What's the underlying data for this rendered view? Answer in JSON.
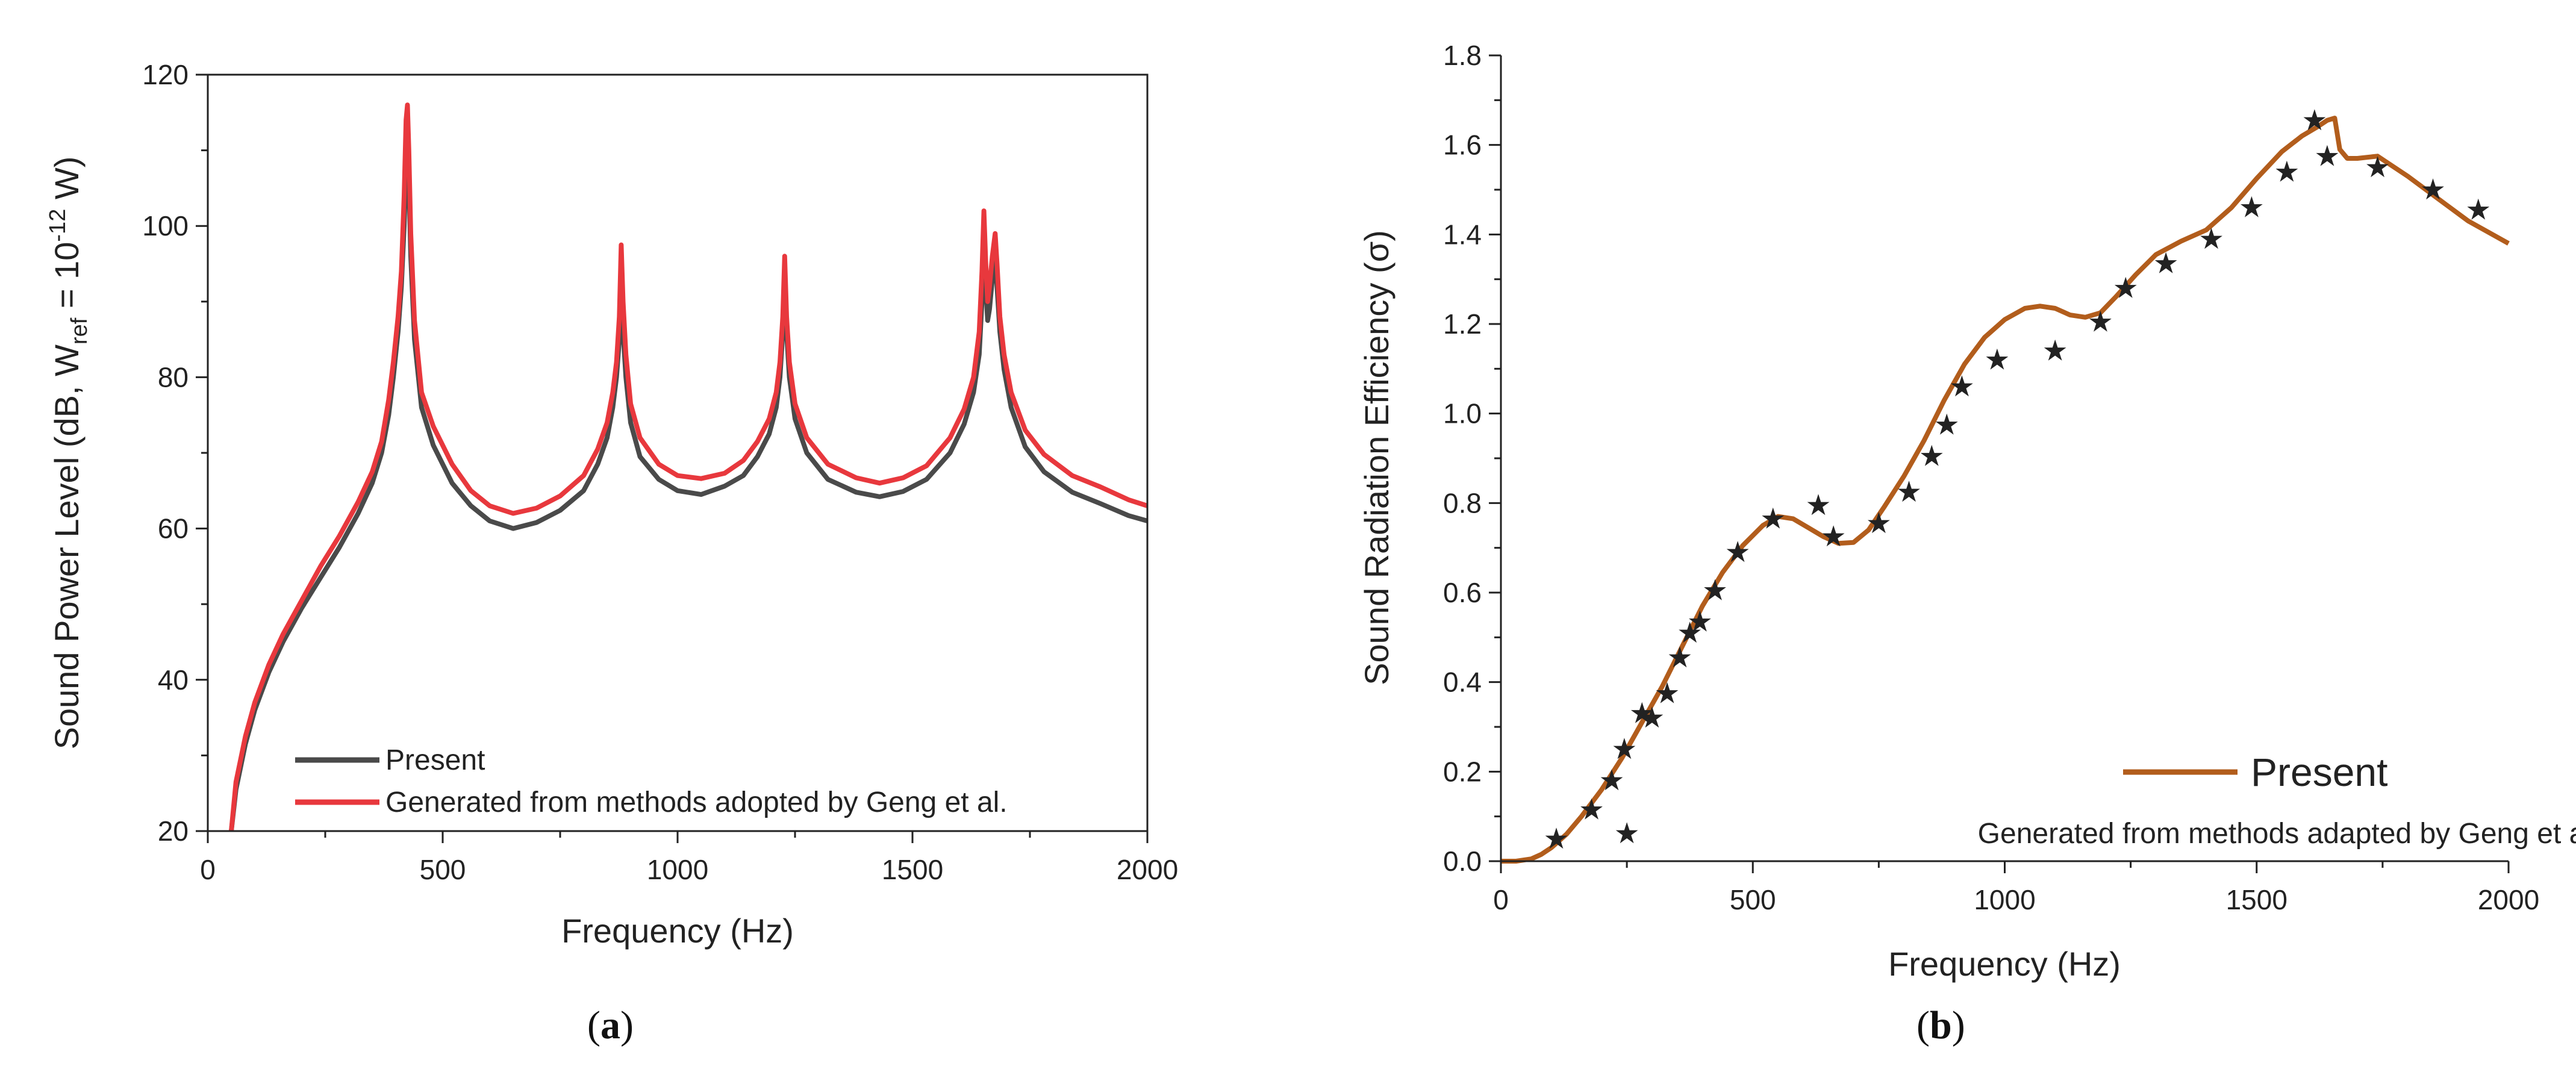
{
  "figure": {
    "caption_a": "a",
    "caption_b": "b"
  },
  "colors": {
    "present_a": "#4a4a4a",
    "geng_a": "#e8383d",
    "present_b": "#b25d1c",
    "geng_b": "#111111"
  },
  "chart_data": [
    {
      "type": "line",
      "panel": "a",
      "xlabel": "Frequency (Hz)",
      "ylabel_main": "Sound Power Level (dB, W",
      "ylabel_sub": "ref",
      "ylabel_mid": " = 10",
      "ylabel_sup": "-12",
      "ylabel_end": " W)",
      "xlim": [
        0,
        2000
      ],
      "ylim": [
        20,
        120
      ],
      "xticks": [
        0,
        500,
        1000,
        1500,
        2000
      ],
      "yticks": [
        20,
        40,
        60,
        80,
        100,
        120
      ],
      "legend": {
        "position": "bottom-left",
        "entries": [
          "Present",
          "Generated from methods adopted by Geng et al."
        ]
      },
      "series": [
        {
          "name": "Present",
          "x": [
            50,
            60,
            80,
            100,
            130,
            160,
            200,
            240,
            280,
            320,
            350,
            370,
            385,
            395,
            405,
            412,
            418,
            422,
            425,
            428,
            432,
            440,
            455,
            480,
            520,
            560,
            600,
            650,
            700,
            750,
            800,
            830,
            850,
            862,
            870,
            876,
            880,
            884,
            890,
            900,
            920,
            960,
            1000,
            1050,
            1100,
            1140,
            1170,
            1195,
            1210,
            1218,
            1224,
            1228,
            1232,
            1238,
            1250,
            1275,
            1320,
            1380,
            1430,
            1480,
            1530,
            1580,
            1610,
            1630,
            1642,
            1648,
            1652,
            1656,
            1660,
            1664,
            1670,
            1676,
            1680,
            1686,
            1695,
            1710,
            1740,
            1780,
            1840,
            1900,
            1960,
            2000
          ],
          "y": [
            20,
            25.5,
            31.5,
            36,
            41,
            45,
            49.5,
            53.5,
            57.5,
            62,
            66,
            70,
            75,
            80,
            86,
            92,
            100,
            108,
            112,
            106,
            96,
            85,
            76,
            71,
            66,
            63,
            61,
            60,
            60.8,
            62.4,
            65,
            68.5,
            72,
            76,
            80,
            85,
            92,
            86,
            80,
            74,
            69.5,
            66.5,
            65,
            64.5,
            65.6,
            67,
            69.5,
            72.5,
            76,
            80,
            86,
            95,
            86,
            80,
            74.5,
            70,
            66.5,
            64.8,
            64.2,
            64.9,
            66.5,
            70,
            73.8,
            78,
            83,
            90,
            98,
            92,
            87.5,
            89,
            93,
            96,
            92,
            86,
            81,
            76,
            70.8,
            67.5,
            64.8,
            63.3,
            61.7,
            61
          ]
        },
        {
          "name": "Generated from methods adopted by Geng et al.",
          "x": [
            50,
            60,
            80,
            100,
            130,
            160,
            200,
            240,
            280,
            320,
            350,
            370,
            385,
            395,
            405,
            412,
            418,
            422,
            425,
            428,
            432,
            440,
            455,
            480,
            520,
            560,
            600,
            650,
            700,
            750,
            800,
            830,
            850,
            862,
            870,
            876,
            880,
            884,
            890,
            900,
            920,
            960,
            1000,
            1050,
            1100,
            1140,
            1170,
            1195,
            1210,
            1218,
            1224,
            1228,
            1232,
            1238,
            1250,
            1275,
            1320,
            1380,
            1430,
            1480,
            1530,
            1580,
            1610,
            1630,
            1642,
            1648,
            1652,
            1656,
            1660,
            1664,
            1670,
            1676,
            1680,
            1686,
            1695,
            1710,
            1740,
            1780,
            1840,
            1900,
            1960,
            2000
          ],
          "y": [
            20,
            26.5,
            32.5,
            37,
            42,
            46,
            50.5,
            55,
            59,
            63.5,
            67.5,
            71.5,
            77,
            82,
            88,
            94,
            104,
            114,
            116,
            110,
            99,
            87.5,
            78,
            73.5,
            68.5,
            65,
            63,
            62,
            62.7,
            64.3,
            67,
            70.5,
            74,
            78,
            82,
            88,
            97.5,
            90,
            83,
            76.5,
            72,
            68.5,
            67,
            66.6,
            67.3,
            69,
            71.5,
            74.5,
            78,
            82,
            88,
            96,
            88,
            82,
            76.5,
            72,
            68.5,
            66.7,
            66,
            66.7,
            68.3,
            72,
            75.8,
            80,
            86,
            94,
            102,
            95,
            90,
            92,
            96,
            99,
            95,
            88,
            83,
            78,
            73,
            69.8,
            67,
            65.5,
            63.8,
            63
          ]
        }
      ]
    },
    {
      "type": "line",
      "panel": "b",
      "xlabel": "Frequency (Hz)",
      "ylabel": "Sound Radiation Efficiency (σ)",
      "xlim": [
        0,
        2000
      ],
      "ylim": [
        0.0,
        1.8
      ],
      "xticks": [
        0,
        500,
        1000,
        1500,
        2000
      ],
      "yticks": [
        "0.0",
        "0.2",
        "0.4",
        "0.6",
        "0.8",
        "1.0",
        "1.2",
        "1.4",
        "1.6",
        "1.8"
      ],
      "legend": {
        "position": "bottom-right",
        "entries": [
          "Present",
          "Generated from methods adapted by Geng et al."
        ]
      },
      "series": [
        {
          "name": "Present",
          "x": [
            0,
            30,
            60,
            80,
            100,
            130,
            160,
            200,
            240,
            280,
            320,
            360,
            400,
            440,
            480,
            520,
            550,
            580,
            610,
            640,
            670,
            700,
            730,
            760,
            800,
            840,
            880,
            920,
            960,
            1000,
            1040,
            1070,
            1100,
            1130,
            1160,
            1190,
            1220,
            1260,
            1300,
            1350,
            1400,
            1450,
            1500,
            1550,
            1590,
            1620,
            1640,
            1655,
            1665,
            1680,
            1700,
            1740,
            1800,
            1860,
            1920,
            2000
          ],
          "y": [
            0.0,
            0.0,
            0.005,
            0.015,
            0.03,
            0.06,
            0.1,
            0.16,
            0.23,
            0.31,
            0.39,
            0.48,
            0.57,
            0.645,
            0.705,
            0.75,
            0.77,
            0.765,
            0.745,
            0.725,
            0.71,
            0.712,
            0.74,
            0.79,
            0.86,
            0.94,
            1.03,
            1.11,
            1.17,
            1.21,
            1.235,
            1.24,
            1.235,
            1.22,
            1.215,
            1.225,
            1.26,
            1.31,
            1.355,
            1.385,
            1.41,
            1.46,
            1.525,
            1.585,
            1.62,
            1.64,
            1.655,
            1.66,
            1.59,
            1.57,
            1.57,
            1.575,
            1.53,
            1.48,
            1.43,
            1.38
          ]
        },
        {
          "name": "Generated from methods adapted by Geng et al.",
          "x": [
            110,
            180,
            220,
            245,
            280,
            300,
            330,
            355,
            375,
            395,
            425,
            470,
            540,
            630,
            660,
            750,
            810,
            855,
            885,
            915,
            985,
            1100,
            1190,
            1240,
            1320,
            1410,
            1490,
            1560,
            1615,
            1640,
            1740,
            1850,
            1940
          ],
          "y": [
            0.05,
            0.115,
            0.18,
            0.25,
            0.33,
            0.32,
            0.375,
            0.455,
            0.51,
            0.535,
            0.605,
            0.69,
            0.765,
            0.795,
            0.725,
            0.755,
            0.825,
            0.905,
            0.975,
            1.06,
            1.12,
            1.14,
            1.205,
            1.28,
            1.335,
            1.39,
            1.46,
            1.54,
            1.655,
            1.575,
            1.55,
            1.5,
            1.455
          ]
        }
      ]
    }
  ]
}
